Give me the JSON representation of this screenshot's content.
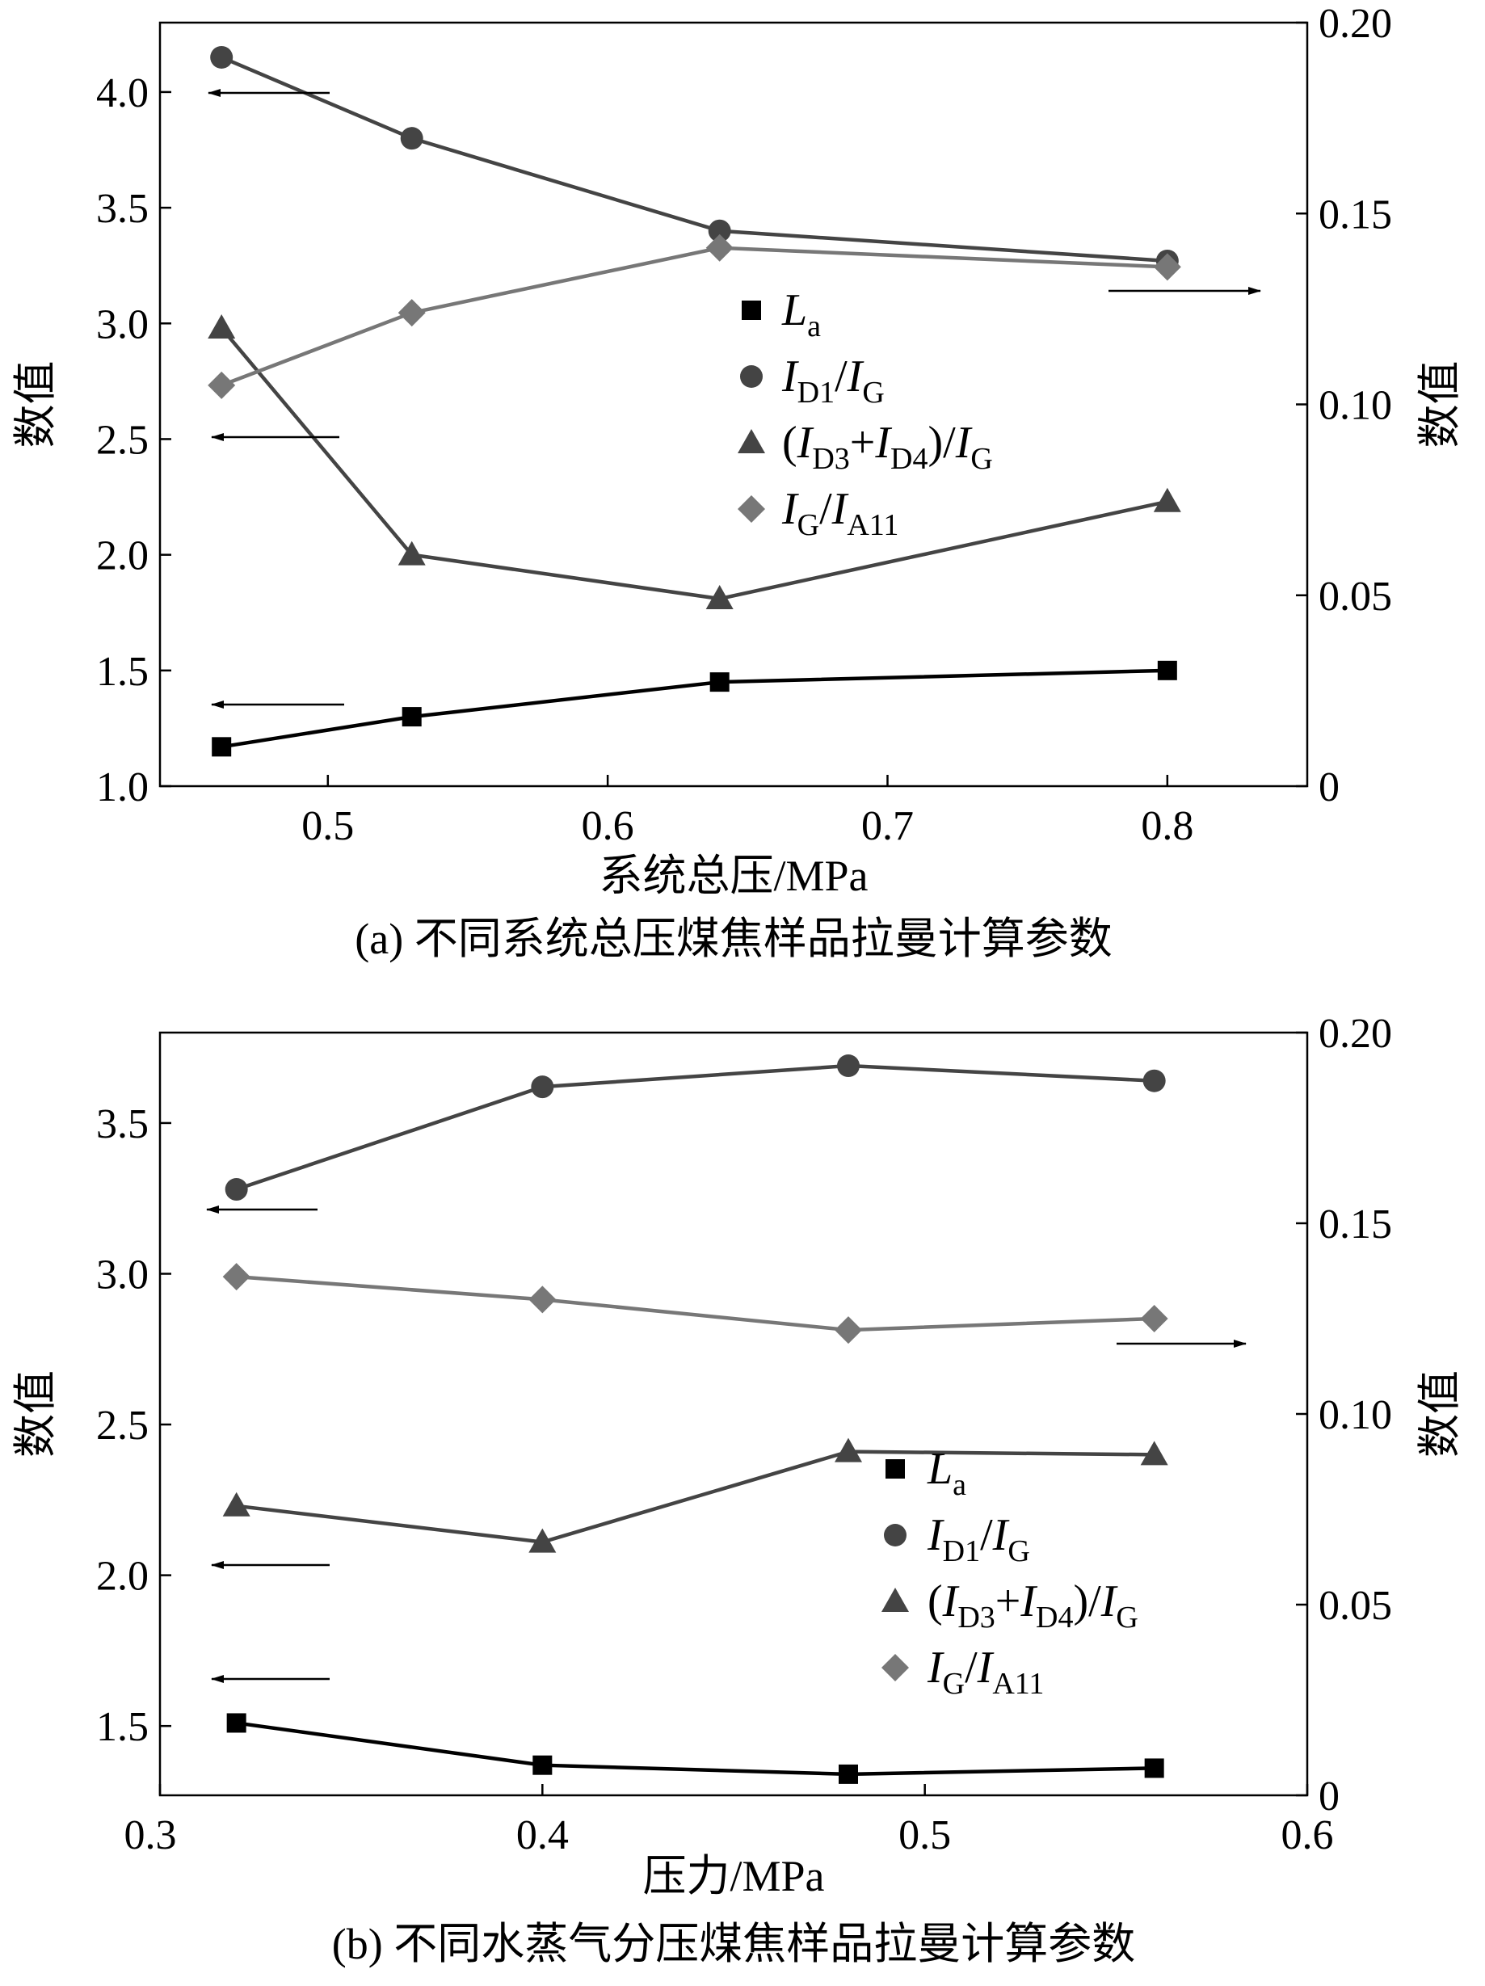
{
  "chart_data": [
    {
      "type": "line",
      "caption": "(a) 不同系统总压煤焦样品拉曼计算参数",
      "xlabel": "系统总压/MPa",
      "ylabel_left": "数值",
      "ylabel_right": "数值",
      "x": [
        0.462,
        0.53,
        0.64,
        0.8
      ],
      "xlim": [
        0.44,
        0.85
      ],
      "xticks": [
        "0.5",
        "0.6",
        "0.7",
        "0.8"
      ],
      "ylim_left": [
        1.0,
        4.3
      ],
      "yticks_left": [
        "1.0",
        "1.5",
        "2.0",
        "2.5",
        "3.0",
        "3.5",
        "4.0"
      ],
      "ylim_right": [
        0,
        0.2
      ],
      "yticks_right": [
        "0",
        "0.05",
        "0.10",
        "0.15",
        "0.20"
      ],
      "legend_position": "center",
      "series": [
        {
          "name": "La",
          "axis": "left",
          "marker": "square",
          "color": "#000000",
          "values": [
            1.17,
            1.3,
            1.45,
            1.5
          ]
        },
        {
          "name": "ID1/IG",
          "axis": "left",
          "marker": "circle",
          "color": "#444444",
          "values": [
            4.15,
            3.8,
            3.4,
            3.27
          ]
        },
        {
          "name": "(ID3+ID4)/IG",
          "axis": "left",
          "marker": "triangle",
          "color": "#444444",
          "values": [
            2.98,
            2.0,
            1.81,
            2.23
          ]
        },
        {
          "name": "IG/IA11",
          "axis": "right",
          "marker": "diamond",
          "color": "#777777",
          "values": [
            0.105,
            0.124,
            0.141,
            0.136
          ]
        }
      ]
    },
    {
      "type": "line",
      "caption": "(b) 不同水蒸气分压煤焦样品拉曼计算参数",
      "xlabel": "压力/MPa",
      "ylabel_left": "数值",
      "ylabel_right": "数值",
      "x": [
        0.32,
        0.4,
        0.48,
        0.56
      ],
      "xlim": [
        0.3,
        0.6
      ],
      "xticks": [
        "0.3",
        "0.4",
        "0.5",
        "0.6"
      ],
      "ylim_left": [
        1.27,
        3.8
      ],
      "yticks_left": [
        "1.5",
        "2.0",
        "2.5",
        "3.0",
        "3.5"
      ],
      "ylim_right": [
        0,
        0.2
      ],
      "yticks_right": [
        "0",
        "0.05",
        "0.10",
        "0.15",
        "0.20"
      ],
      "legend_position": "lower right",
      "series": [
        {
          "name": "La",
          "axis": "left",
          "marker": "square",
          "color": "#000000",
          "values": [
            1.51,
            1.37,
            1.34,
            1.36
          ]
        },
        {
          "name": "ID1/IG",
          "axis": "left",
          "marker": "circle",
          "color": "#444444",
          "values": [
            3.28,
            3.62,
            3.69,
            3.64
          ]
        },
        {
          "name": "(ID3+ID4)/IG",
          "axis": "left",
          "marker": "triangle",
          "color": "#444444",
          "values": [
            2.23,
            2.11,
            2.41,
            2.4
          ]
        },
        {
          "name": "IG/IA11",
          "axis": "right",
          "marker": "diamond",
          "color": "#777777",
          "values": [
            0.136,
            0.13,
            0.122,
            0.125
          ]
        }
      ]
    }
  ]
}
